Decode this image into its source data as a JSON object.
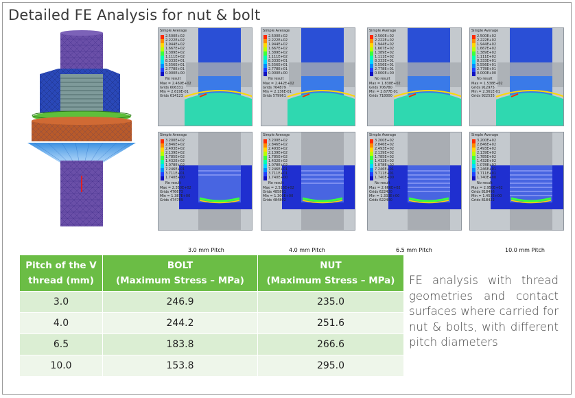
{
  "title": "Detailed FE Analysis for nut & bolt",
  "fe_panels": {
    "legend_title": "Simple Average",
    "no_result": "No result",
    "rows": [
      {
        "legend": [
          "2.500E+02",
          "2.222E+02",
          "1.944E+02",
          "1.667E+02",
          "1.389E+02",
          "1.111E+02",
          "8.333E+01",
          "5.556E+01",
          "2.778E+01",
          "0.000E+00"
        ],
        "panels": [
          {
            "max": "Max = 2.469E+02",
            "grids": "Grids 606331",
            "min": "Min = 2.619E-01",
            "grids2": "Grids 614123"
          },
          {
            "max": "Max = 2.442E+02",
            "grids": "Grids 764879",
            "min": "Min = 2.136E-01",
            "grids2": "Grids 579961"
          },
          {
            "max": "Max = 1.838E+02",
            "grids": "Grids 706780",
            "min": "Min = 2.677E-01",
            "grids2": "Grids 718000"
          },
          {
            "max": "Max = 1.538E+02",
            "grids": "Grids 912975",
            "min": "Min = 2.361E-01",
            "grids2": "Grids 922535"
          }
        ]
      },
      {
        "legend": [
          "3.200E+02",
          "2.846E+02",
          "2.493E+02",
          "2.139E+02",
          "1.785E+02",
          "1.432E+02",
          "1.078E+02",
          "7.246E+01",
          "3.711E+01",
          "1.740E+00"
        ],
        "panels": [
          {
            "max": "Max = 2.350E+02",
            "grids": "Grids 476673",
            "min": "Min = 1.387E+00",
            "grids2": "Grids 474789"
          },
          {
            "max": "Max = 2.516E+02",
            "grids": "Grids 485891",
            "min": "Min = 1.300E+00",
            "grids2": "Grids 484802"
          },
          {
            "max": "Max = 2.666E+02",
            "grids": "Grids 622420",
            "min": "Min = 1.333E+00",
            "grids2": "Grids 622400"
          },
          {
            "max": "Max = 2.950E+02",
            "grids": "Grids 818496",
            "min": "Min = 1.453E+00",
            "grids2": "Grids 818422"
          }
        ]
      }
    ],
    "pitch_labels": [
      "3.0 mm Pitch",
      "4.0 mm Pitch",
      "6.5 mm Pitch",
      "10.0 mm Pitch"
    ]
  },
  "table": {
    "headers": {
      "pitch_line1": "Pitch of the V",
      "pitch_line2": "thread (mm)",
      "bolt_line1": "BOLT",
      "bolt_line2": "(Maximum Stress – MPa)",
      "nut_line1": "NUT",
      "nut_line2": "(Maximum Stress – MPa)"
    },
    "rows": [
      {
        "pitch": "3.0",
        "bolt": "246.9",
        "nut": "235.0"
      },
      {
        "pitch": "4.0",
        "bolt": "244.2",
        "nut": "251.6"
      },
      {
        "pitch": "6.5",
        "bolt": "183.8",
        "nut": "266.6"
      },
      {
        "pitch": "10.0",
        "bolt": "153.8",
        "nut": "295.0"
      }
    ]
  },
  "note": "FE analysis with thread geometries and contact surfaces where carried for nut & bolts, with different pitch diameters",
  "colors": {
    "header_green": "#6bbd45",
    "row_light": "#dbeed3",
    "row_lighter": "#eef6ea",
    "bolt_purple": "#6a4fa8",
    "nut_blue": "#2a48b8",
    "washer_green": "#5fbf3a",
    "washer_orange": "#b85a2a"
  }
}
